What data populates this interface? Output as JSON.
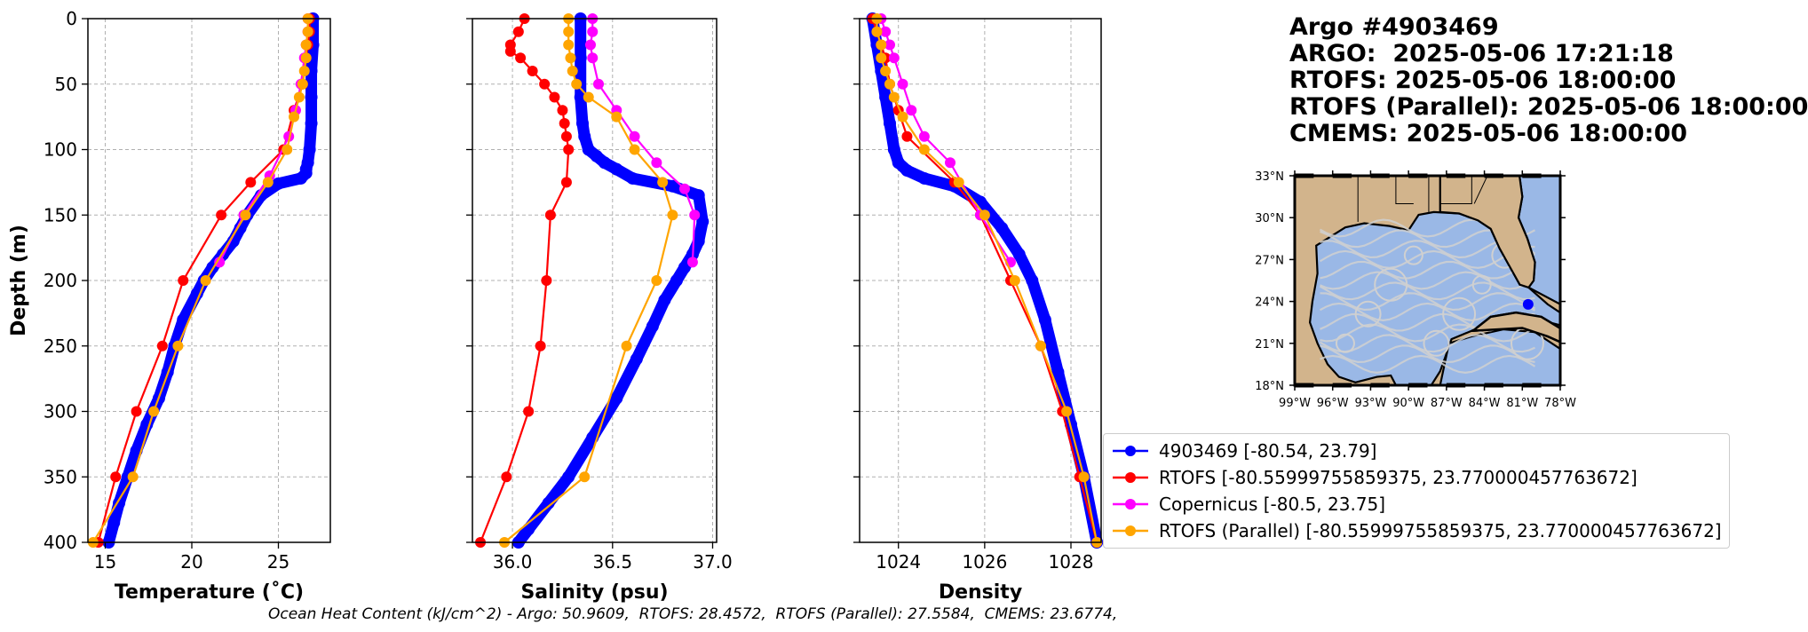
{
  "info": {
    "lines": [
      "Argo #4903469",
      "ARGO:  2025-05-06 17:21:18",
      "RTOFS: 2025-05-06 18:00:00",
      "RTOFS (Parallel): 2025-05-06 18:00:00",
      "CMEMS: 2025-05-06 18:00:00"
    ]
  },
  "footer": {
    "ohc_text": "Ocean Heat Content (kJ/cm^2) - Argo: 50.9609,  RTOFS: 28.4572,  RTOFS (Parallel): 27.5584,  CMEMS: 23.6774,"
  },
  "colors": {
    "argo": "#0000ff",
    "rtofs": "#ff0000",
    "copernicus": "#ff00ff",
    "rtofs_parallel": "#ffa500",
    "land": "#d2b48c",
    "ocean": "#9ab8e6",
    "currents": "#d0d0d0"
  },
  "legend": [
    {
      "label": "4903469 [-80.54, 23.79]",
      "color": "#0000ff"
    },
    {
      "label": "RTOFS [-80.55999755859375, 23.770000457763672]",
      "color": "#ff0000"
    },
    {
      "label": "Copernicus [-80.5, 23.75]",
      "color": "#ff00ff"
    },
    {
      "label": "RTOFS (Parallel) [-80.55999755859375, 23.770000457763672]",
      "color": "#ffa500"
    }
  ],
  "chart_data": [
    {
      "type": "line",
      "xlabel": "Temperature (˚C)",
      "ylabel": "Depth (m)",
      "xlim": [
        14,
        28
      ],
      "ylim": [
        400,
        0
      ],
      "xticks": [
        15,
        20,
        25
      ],
      "yticks": [
        0,
        50,
        100,
        150,
        200,
        250,
        300,
        350,
        400
      ],
      "grid": true,
      "series": [
        {
          "name": "4903469",
          "color": "#0000ff",
          "dense": true,
          "x": [
            27.0,
            27.0,
            26.9,
            26.9,
            26.9,
            26.8,
            26.7,
            26.6,
            26.6,
            26.3,
            25.0,
            24.0,
            23.2,
            22.8,
            22.4,
            21.8,
            21.2,
            20.7,
            20.3,
            19.5,
            19.0,
            18.6,
            18.1,
            17.4,
            16.8,
            16.3,
            15.8,
            15.5,
            15.2
          ],
          "y": [
            0,
            20,
            40,
            60,
            80,
            100,
            110,
            115,
            118,
            122,
            126,
            135,
            150,
            160,
            170,
            180,
            190,
            200,
            210,
            230,
            250,
            270,
            290,
            310,
            330,
            350,
            370,
            385,
            400
          ]
        },
        {
          "name": "RTOFS",
          "color": "#ff0000",
          "x": [
            26.8,
            26.8,
            26.7,
            26.6,
            26.4,
            25.9,
            25.3,
            23.4,
            21.7,
            19.5,
            18.3,
            16.8,
            15.6,
            14.6
          ],
          "y": [
            0,
            10,
            20,
            30,
            50,
            70,
            100,
            125,
            150,
            200,
            250,
            300,
            350,
            400
          ]
        },
        {
          "name": "Copernicus",
          "color": "#ff00ff",
          "x": [
            26.7,
            26.7,
            26.6,
            26.5,
            26.3,
            26.0,
            25.6,
            24.5,
            23.0,
            21.6
          ],
          "y": [
            0,
            10,
            20,
            30,
            50,
            70,
            90,
            120,
            150,
            186
          ]
        },
        {
          "name": "RTOFS (Parallel)",
          "color": "#ffa500",
          "x": [
            26.7,
            26.7,
            26.6,
            26.6,
            26.5,
            26.4,
            26.2,
            25.9,
            25.5,
            24.4,
            23.1,
            20.8,
            19.2,
            17.8,
            16.6,
            14.3
          ],
          "y": [
            0,
            10,
            20,
            30,
            40,
            50,
            60,
            75,
            100,
            125,
            150,
            200,
            250,
            300,
            350,
            400
          ]
        }
      ]
    },
    {
      "type": "line",
      "xlabel": "Salinity (psu)",
      "ylabel": "",
      "xlim": [
        35.8,
        37.02
      ],
      "ylim": [
        400,
        0
      ],
      "xticks": [
        36.0,
        36.5,
        37.0
      ],
      "yticks": [
        0,
        50,
        100,
        150,
        200,
        250,
        300,
        350,
        400
      ],
      "grid": true,
      "series": [
        {
          "name": "4903469",
          "color": "#0000ff",
          "dense": true,
          "x": [
            36.34,
            36.34,
            36.34,
            36.35,
            36.36,
            36.38,
            36.42,
            36.46,
            36.52,
            36.6,
            36.8,
            36.93,
            36.95,
            36.93,
            36.9,
            36.86,
            36.82,
            36.76,
            36.7,
            36.62,
            36.52,
            36.4,
            36.28,
            36.18,
            36.08,
            36.03
          ],
          "y": [
            0,
            30,
            60,
            80,
            90,
            100,
            105,
            110,
            115,
            122,
            128,
            135,
            155,
            170,
            180,
            190,
            200,
            215,
            235,
            260,
            290,
            320,
            350,
            370,
            390,
            400
          ]
        },
        {
          "name": "RTOFS",
          "color": "#ff0000",
          "x": [
            36.06,
            36.03,
            35.99,
            35.99,
            36.04,
            36.1,
            36.16,
            36.21,
            36.25,
            36.26,
            36.27,
            36.28,
            36.27,
            36.19,
            36.17,
            36.14,
            36.08,
            35.97,
            35.84
          ],
          "y": [
            0,
            10,
            20,
            25,
            30,
            40,
            50,
            60,
            70,
            80,
            90,
            100,
            125,
            150,
            200,
            250,
            300,
            350,
            400
          ]
        },
        {
          "name": "Copernicus",
          "color": "#ff00ff",
          "x": [
            36.4,
            36.4,
            36.39,
            36.4,
            36.43,
            36.52,
            36.61,
            36.72,
            36.86,
            36.91,
            36.9
          ],
          "y": [
            0,
            10,
            20,
            30,
            50,
            70,
            90,
            110,
            130,
            150,
            186
          ]
        },
        {
          "name": "RTOFS (Parallel)",
          "color": "#ffa500",
          "x": [
            36.28,
            36.28,
            36.28,
            36.29,
            36.3,
            36.32,
            36.38,
            36.52,
            36.61,
            36.75,
            36.8,
            36.72,
            36.57,
            36.36,
            35.96
          ],
          "y": [
            0,
            10,
            20,
            30,
            40,
            50,
            60,
            75,
            100,
            125,
            150,
            200,
            250,
            350,
            400
          ]
        }
      ]
    },
    {
      "type": "line",
      "xlabel": "Density",
      "ylabel": "",
      "xlim": [
        1023.1,
        1028.7
      ],
      "ylim": [
        400,
        0
      ],
      "xticks": [
        1024,
        1026,
        1028
      ],
      "yticks": [
        0,
        50,
        100,
        150,
        200,
        250,
        300,
        350,
        400
      ],
      "grid": true,
      "series": [
        {
          "name": "4903469",
          "color": "#0000ff",
          "dense": true,
          "x": [
            1023.4,
            1023.5,
            1023.6,
            1023.7,
            1023.8,
            1023.9,
            1024.0,
            1024.2,
            1024.6,
            1025.3,
            1025.9,
            1026.4,
            1026.8,
            1027.1,
            1027.4,
            1027.7,
            1028.0,
            1028.3,
            1028.6
          ],
          "y": [
            0,
            20,
            40,
            60,
            80,
            100,
            110,
            116,
            122,
            128,
            140,
            160,
            180,
            200,
            230,
            270,
            310,
            350,
            400
          ]
        },
        {
          "name": "RTOFS",
          "color": "#ff0000",
          "x": [
            1023.4,
            1023.5,
            1023.6,
            1023.7,
            1023.8,
            1024.0,
            1024.2,
            1025.3,
            1025.9,
            1026.6,
            1027.3,
            1027.8,
            1028.2,
            1028.6
          ],
          "y": [
            0,
            10,
            20,
            30,
            50,
            70,
            90,
            125,
            150,
            200,
            250,
            300,
            350,
            400
          ]
        },
        {
          "name": "Copernicus",
          "color": "#ff00ff",
          "x": [
            1023.6,
            1023.7,
            1023.8,
            1023.9,
            1024.1,
            1024.3,
            1024.6,
            1025.2,
            1025.9,
            1026.6
          ],
          "y": [
            0,
            10,
            20,
            30,
            50,
            70,
            90,
            110,
            150,
            186
          ]
        },
        {
          "name": "RTOFS (Parallel)",
          "color": "#ffa500",
          "x": [
            1023.5,
            1023.5,
            1023.6,
            1023.6,
            1023.7,
            1023.8,
            1023.9,
            1024.1,
            1024.6,
            1025.4,
            1026.0,
            1026.7,
            1027.3,
            1027.9,
            1028.3,
            1028.6
          ],
          "y": [
            0,
            10,
            20,
            30,
            40,
            50,
            60,
            75,
            100,
            125,
            150,
            200,
            250,
            300,
            350,
            400
          ]
        }
      ]
    }
  ],
  "map": {
    "lon_ticks": [
      "99°W",
      "96°W",
      "93°W",
      "90°W",
      "87°W",
      "84°W",
      "81°W",
      "78°W"
    ],
    "lat_ticks": [
      "33°N",
      "30°N",
      "27°N",
      "24°N",
      "21°N",
      "18°N"
    ],
    "lon_range": [
      -99,
      -78
    ],
    "lat_range": [
      18,
      33
    ],
    "marker": {
      "lon": -80.54,
      "lat": 23.79,
      "color": "#0000ff"
    }
  }
}
